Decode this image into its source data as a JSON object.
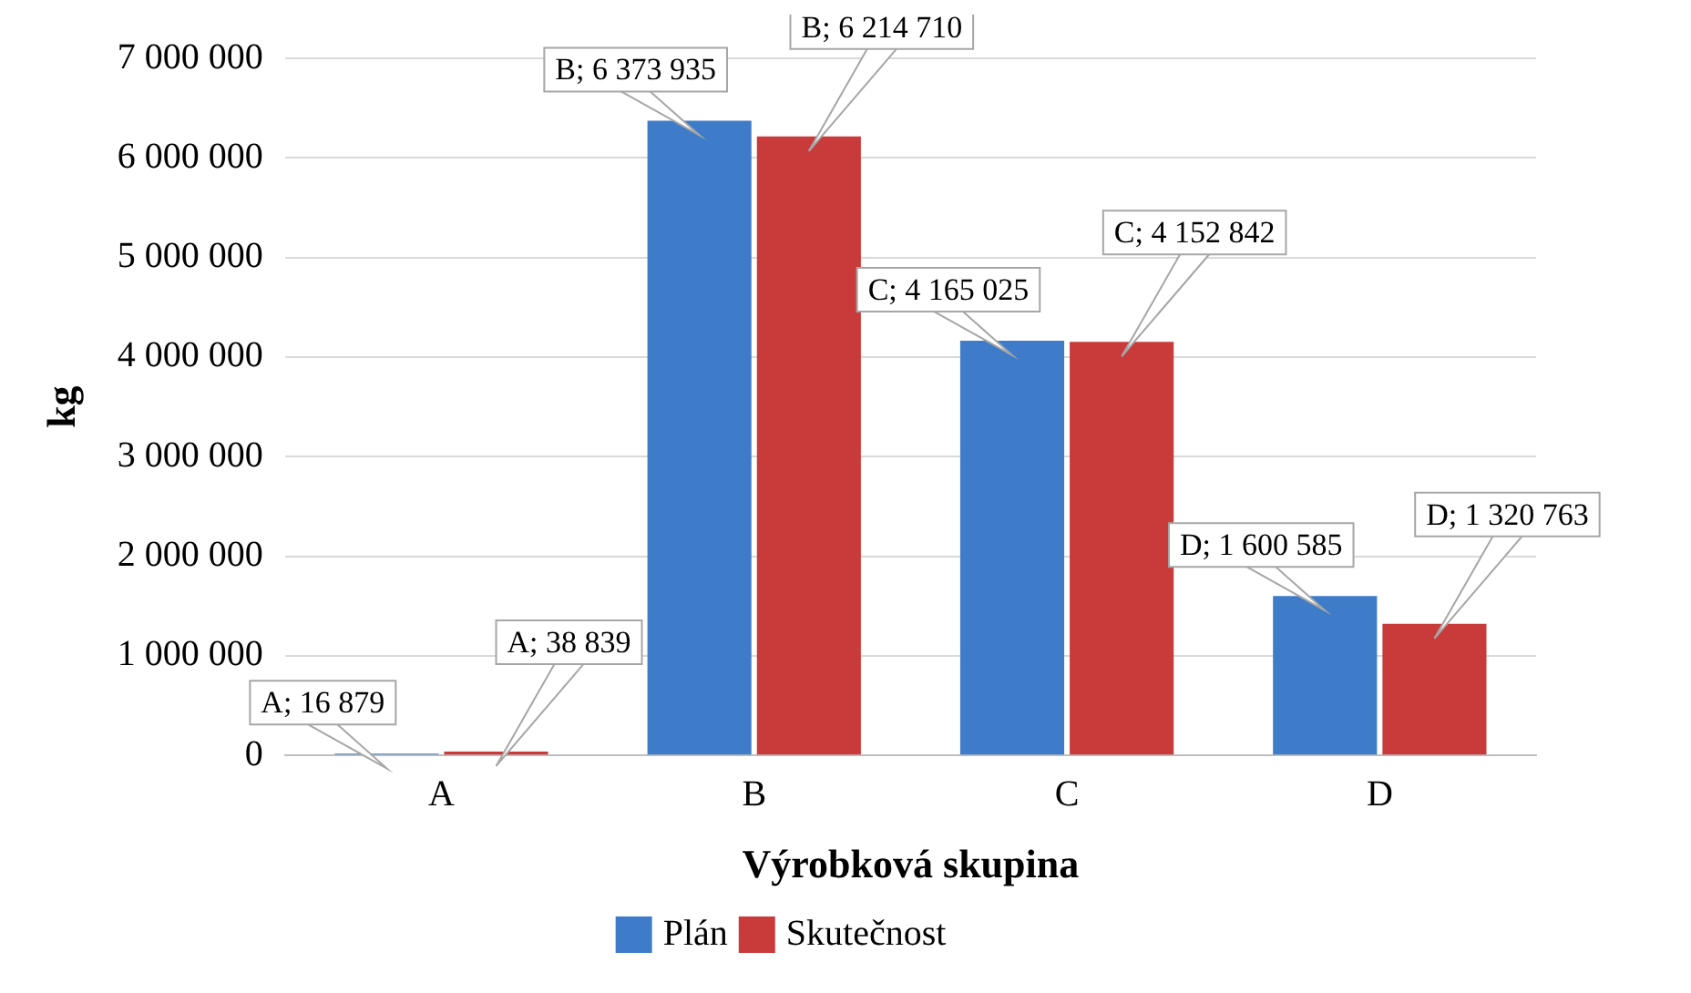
{
  "chart_data": {
    "type": "bar",
    "xlabel": "Výrobková skupina",
    "ylabel": "kg",
    "categories": [
      "A",
      "B",
      "C",
      "D"
    ],
    "series": [
      {
        "name": "Plán",
        "color": "#3e7cc9",
        "values": [
          16879,
          6373935,
          4165025,
          1600585
        ],
        "value_labels": [
          "A; 16 879",
          "B; 6 373 935",
          "C; 4 165 025",
          "D; 1 600 585"
        ]
      },
      {
        "name": "Skutečnost",
        "color": "#c93a3a",
        "values": [
          38839,
          6214710,
          4152842,
          1320763
        ],
        "value_labels": [
          "A; 38 839",
          "B; 6 214 710",
          "C; 4 152 842",
          "D; 1 320 763"
        ]
      }
    ],
    "ylim": [
      0,
      7000000
    ],
    "yticks": [
      {
        "value": 0,
        "label": "0"
      },
      {
        "value": 1000000,
        "label": "1 000 000"
      },
      {
        "value": 2000000,
        "label": "2 000 000"
      },
      {
        "value": 3000000,
        "label": "3 000 000"
      },
      {
        "value": 4000000,
        "label": "4 000 000"
      },
      {
        "value": 5000000,
        "label": "5 000 000"
      },
      {
        "value": 6000000,
        "label": "6 000 000"
      },
      {
        "value": 7000000,
        "label": "7 000 000"
      }
    ],
    "grid": "y",
    "legend": "bottom"
  }
}
